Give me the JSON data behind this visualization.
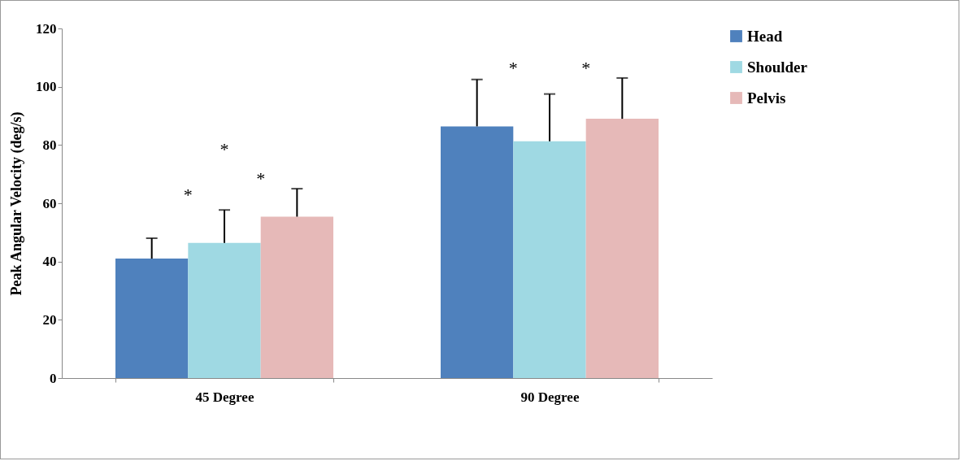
{
  "chart_data": {
    "type": "bar",
    "ylabel": "Peak Angular Velocity (deg/s)",
    "categories": [
      "45 Degree",
      "90 Degree"
    ],
    "series": [
      {
        "name": "Head",
        "color": "#4f81bd",
        "values": [
          41,
          86.4
        ],
        "errors": [
          [
            41,
            48
          ],
          [
            86.4,
            102.5
          ]
        ]
      },
      {
        "name": "Shoulder",
        "color": "#9fd9e3",
        "values": [
          46.4,
          81.3
        ],
        "errors": [
          [
            46.4,
            57.7
          ],
          [
            81.3,
            97.5
          ]
        ]
      },
      {
        "name": "Pelvis",
        "color": "#e6b9b8",
        "values": [
          55.4,
          89
        ],
        "errors": [
          [
            55.4,
            65
          ],
          [
            89,
            103
          ]
        ]
      }
    ],
    "ylim": [
      0,
      120
    ],
    "yticks": [
      0,
      20,
      40,
      60,
      80,
      100,
      120
    ],
    "grid": false,
    "legend": "right",
    "annotations": [
      "*",
      "*",
      "*",
      "*",
      "*"
    ]
  }
}
